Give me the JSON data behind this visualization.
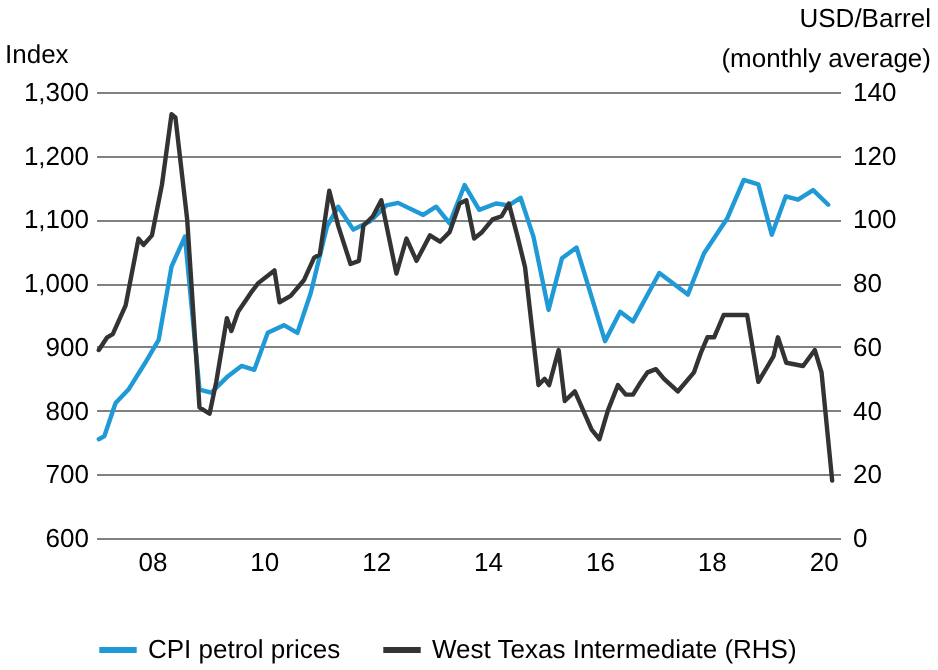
{
  "chart_data": {
    "type": "line",
    "ylabel": "Index",
    "y2label": "USD/Barrel\n(monthly average)",
    "xlim": [
      2007,
      2020.3
    ],
    "xticks": [
      {
        "value": 2008,
        "label": "08"
      },
      {
        "value": 2010,
        "label": "10"
      },
      {
        "value": 2012,
        "label": "12"
      },
      {
        "value": 2014,
        "label": "14"
      },
      {
        "value": 2016,
        "label": "16"
      },
      {
        "value": 2018,
        "label": "18"
      },
      {
        "value": 2020,
        "label": "20"
      }
    ],
    "ylim": [
      600,
      1300
    ],
    "yticks": [
      600,
      700,
      800,
      900,
      {
        "value": 1000,
        "label": "1,000"
      },
      {
        "value": 1100,
        "label": "1,100"
      },
      {
        "value": 1200,
        "label": "1,200"
      },
      {
        "value": 1300,
        "label": "1,300"
      }
    ],
    "y2lim": [
      0,
      140
    ],
    "y2ticks": [
      0,
      20,
      40,
      60,
      80,
      100,
      120,
      140
    ],
    "grid": "y",
    "legend": "bottom",
    "series": [
      {
        "name": "CPI petrol prices",
        "color": "#1f9ad6",
        "x": [
          2007.05,
          2007.15,
          2007.35,
          2007.58,
          2007.88,
          2008.12,
          2008.35,
          2008.59,
          2008.85,
          2009.06,
          2009.36,
          2009.6,
          2009.83,
          2010.07,
          2010.36,
          2010.6,
          2010.84,
          2011.13,
          2011.33,
          2011.6,
          2011.9,
          2012.19,
          2012.4,
          2012.85,
          2013.08,
          2013.32,
          2013.59,
          2013.85,
          2014.15,
          2014.38,
          2014.59,
          2014.82,
          2015.09,
          2015.33,
          2015.59,
          2016.1,
          2016.37,
          2016.6,
          2017.07,
          2017.58,
          2017.87,
          2018.28,
          2018.58,
          2018.84,
          2019.08,
          2019.33,
          2019.55,
          2019.82,
          2020.09
        ],
        "values": [
          755,
          760,
          812,
          833,
          875,
          911,
          1026,
          1073,
          833,
          828,
          854,
          870,
          864,
          922,
          934,
          922,
          985,
          1089,
          1120,
          1084,
          1097,
          1122,
          1126,
          1107,
          1120,
          1094,
          1154,
          1115,
          1125,
          1122,
          1134,
          1073,
          958,
          1039,
          1056,
          909,
          955,
          940,
          1016,
          982,
          1047,
          1101,
          1162,
          1155,
          1076,
          1136,
          1131,
          1146,
          1123
        ]
      },
      {
        "name": "West Texas Intermediate (RHS)",
        "color": "#333333",
        "axis": "y2",
        "x": [
          2007.05,
          2007.2,
          2007.3,
          2007.53,
          2007.76,
          2007.85,
          2008.0,
          2008.18,
          2008.35,
          2008.42,
          2008.63,
          2008.85,
          2009.03,
          2009.15,
          2009.34,
          2009.42,
          2009.54,
          2009.77,
          2009.9,
          2010.19,
          2010.28,
          2010.48,
          2010.72,
          2010.9,
          2011.0,
          2011.17,
          2011.33,
          2011.55,
          2011.7,
          2011.78,
          2011.95,
          2012.1,
          2012.37,
          2012.55,
          2012.73,
          2012.97,
          2013.15,
          2013.32,
          2013.5,
          2013.62,
          2013.76,
          2013.9,
          2014.09,
          2014.25,
          2014.38,
          2014.53,
          2014.67,
          2014.91,
          2015.02,
          2015.1,
          2015.27,
          2015.38,
          2015.56,
          2015.86,
          2016.0,
          2016.15,
          2016.33,
          2016.47,
          2016.6,
          2016.74,
          2016.86,
          2017.01,
          2017.15,
          2017.4,
          2017.69,
          2017.81,
          2017.93,
          2018.05,
          2018.22,
          2018.52,
          2018.64,
          2018.84,
          2019.11,
          2019.19,
          2019.34,
          2019.64,
          2019.85,
          2019.97,
          2020.16
        ],
        "values": [
          59,
          63,
          64,
          73,
          94,
          92,
          95,
          111,
          133,
          132,
          100,
          41,
          39,
          49,
          69,
          65,
          71,
          77,
          80,
          84,
          74,
          76,
          81,
          88,
          89,
          109,
          98,
          86,
          87,
          98,
          101,
          106,
          83,
          94,
          87,
          95,
          93,
          96,
          105,
          106,
          94,
          96,
          100,
          101,
          105,
          95,
          85,
          48,
          50,
          48,
          59,
          43,
          46,
          34,
          31,
          40,
          48,
          45,
          45,
          49,
          52,
          53,
          50,
          46,
          52,
          58,
          63,
          63,
          70,
          70,
          70,
          49,
          57,
          63,
          55,
          54,
          59,
          52,
          18
        ]
      }
    ]
  }
}
